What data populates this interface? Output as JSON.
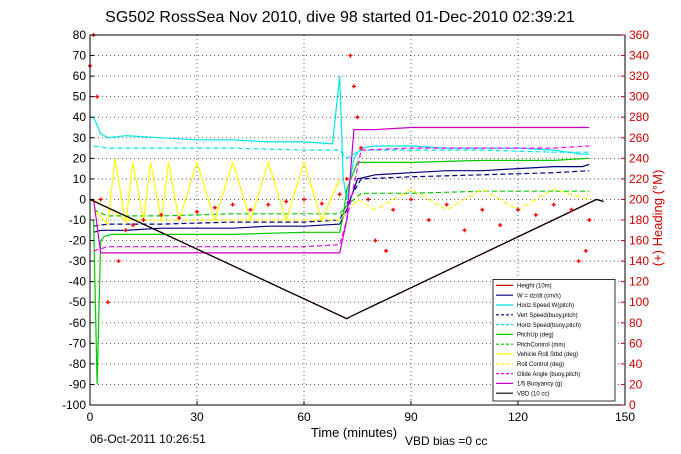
{
  "chart_data": {
    "type": "line",
    "title": "SG502 RossSea Nov 2010, dive 98 started 01-Dec-2010 02:39:21",
    "xlabel": "Time (minutes)",
    "ylabel_right": "(+) Heading (°M)",
    "xlim": [
      0,
      150
    ],
    "ylim": [
      -100,
      80
    ],
    "ylim_right": [
      0,
      360
    ],
    "xticks": [
      0,
      30,
      60,
      90,
      120,
      150
    ],
    "yticks": [
      80,
      70,
      60,
      50,
      40,
      30,
      20,
      10,
      0,
      -10,
      -20,
      -30,
      -40,
      -50,
      -60,
      -70,
      -80,
      -90,
      -100
    ],
    "yticks_right": [
      360,
      340,
      320,
      300,
      280,
      260,
      240,
      220,
      200,
      180,
      160,
      140,
      120,
      100,
      80,
      60,
      40,
      20,
      0
    ],
    "grid": true,
    "legend_position": "bottom-right",
    "series": [
      {
        "name": "Height (10m)",
        "color": "#cc0000",
        "style": "solid",
        "x": [
          0,
          72,
          73,
          142,
          144
        ],
        "y": [
          0,
          -58,
          -57,
          0,
          -1
        ]
      },
      {
        "name": "W = dz/dt (cm/s)",
        "color": "#000080",
        "style": "solid",
        "x": [
          1,
          3,
          10,
          20,
          30,
          40,
          50,
          60,
          70,
          72,
          75,
          80,
          90,
          100,
          110,
          120,
          130,
          138,
          140
        ],
        "y": [
          -16,
          -15,
          -15,
          -14,
          -14,
          -14,
          -13,
          -13,
          -12,
          -5,
          10,
          12,
          13,
          14,
          14,
          15,
          16,
          16,
          17
        ]
      },
      {
        "name": "Horiz Speed W(pitch)",
        "color": "#00e5e5",
        "style": "solid",
        "x": [
          1,
          3,
          5,
          10,
          20,
          30,
          40,
          50,
          60,
          68,
          70,
          71,
          72,
          74,
          76,
          80,
          90,
          100,
          110,
          120,
          130,
          138,
          140
        ],
        "y": [
          40,
          32,
          30,
          31,
          30,
          29,
          29,
          28,
          28,
          27,
          60,
          10,
          0,
          20,
          25,
          26,
          26,
          25,
          25,
          25,
          24,
          22,
          22
        ]
      },
      {
        "name": "Vert Speed(buoy,pitch)",
        "color": "#000080",
        "style": "dashed",
        "x": [
          1,
          5,
          20,
          40,
          60,
          70,
          72,
          76,
          90,
          110,
          130,
          140
        ],
        "y": [
          -13,
          -12,
          -12,
          -11,
          -11,
          -10,
          -2,
          10,
          11,
          12,
          13,
          14
        ]
      },
      {
        "name": "Horiz Speed(buoy,pitch)",
        "color": "#00e5e5",
        "style": "dashed",
        "x": [
          1,
          5,
          20,
          40,
          60,
          70,
          72,
          76,
          90,
          110,
          130,
          140
        ],
        "y": [
          26,
          25,
          25,
          25,
          24,
          24,
          20,
          24,
          24,
          24,
          23,
          23
        ]
      },
      {
        "name": "PitchUp (deg)",
        "color": "#00cc00",
        "style": "solid",
        "x": [
          1,
          2,
          3,
          4,
          6,
          20,
          40,
          60,
          70,
          71,
          72,
          75,
          90,
          110,
          130,
          140
        ],
        "y": [
          -10,
          -90,
          -20,
          -18,
          -17,
          -17,
          -17,
          -16,
          -16,
          -8,
          5,
          18,
          18,
          19,
          19,
          20
        ]
      },
      {
        "name": "PitchControl (mm)",
        "color": "#00cc00",
        "style": "dashed",
        "x": [
          1,
          5,
          20,
          40,
          60,
          70,
          72,
          76,
          90,
          110,
          130,
          140
        ],
        "y": [
          -5,
          -8,
          -8,
          -7,
          -7,
          -7,
          -3,
          3,
          3,
          4,
          4,
          4
        ]
      },
      {
        "name": "Vehicle Roll Stbd (deg)",
        "color": "#ffff00",
        "style": "solid",
        "x": [
          1,
          5,
          7,
          10,
          12,
          15,
          17,
          20,
          22,
          25,
          30,
          35,
          40,
          45,
          50,
          55,
          60,
          65,
          70
        ],
        "y": [
          -5,
          -12,
          20,
          -12,
          18,
          -10,
          18,
          -10,
          18,
          -10,
          18,
          -10,
          18,
          -10,
          18,
          -10,
          18,
          -10,
          10
        ]
      },
      {
        "name": "Roll Control (deg)",
        "color": "#ffff00",
        "style": "dashed",
        "x": [
          1,
          10,
          30,
          50,
          70,
          75,
          80,
          90,
          100,
          110,
          120,
          130,
          140
        ],
        "y": [
          0,
          -10,
          -10,
          -10,
          -10,
          0,
          -5,
          5,
          -5,
          5,
          -5,
          5,
          0
        ]
      },
      {
        "name": "Glide Angle (buoy,pitch)",
        "color": "#ff00ff",
        "style": "dashed",
        "x": [
          1,
          5,
          20,
          40,
          60,
          70,
          72,
          76,
          90,
          110,
          130,
          140
        ],
        "y": [
          -25,
          -23,
          -23,
          -23,
          -23,
          -22,
          -10,
          24,
          25,
          25,
          25,
          26
        ]
      },
      {
        "name": "1/5 Buoyancy (g)",
        "color": "#cc00cc",
        "style": "solid",
        "x": [
          1,
          3,
          10,
          20,
          30,
          40,
          50,
          60,
          70,
          72,
          74,
          80,
          90,
          100,
          110,
          120,
          130,
          138,
          140
        ],
        "y": [
          0,
          -26,
          -26,
          -26,
          -26,
          -26,
          -26,
          -26,
          -26,
          -10,
          34,
          34,
          35,
          35,
          35,
          35,
          35,
          35,
          35
        ]
      },
      {
        "name": "VBD (10 cc)",
        "color": "#000000",
        "style": "solid",
        "x": [
          0,
          72,
          73,
          142,
          144
        ],
        "y": [
          0,
          -58,
          -57,
          0,
          -1
        ]
      },
      {
        "name": "(+) Heading (°M)",
        "color": "#ff0000",
        "style": "dots",
        "axis": "right",
        "x": [
          0,
          1,
          2,
          3,
          5,
          8,
          10,
          12,
          15,
          20,
          25,
          30,
          35,
          40,
          45,
          50,
          55,
          60,
          65,
          70,
          72,
          73,
          74,
          75,
          76,
          78,
          80,
          83,
          85,
          90,
          95,
          100,
          105,
          110,
          115,
          120,
          125,
          130,
          135,
          137,
          139,
          140
        ],
        "y": [
          330,
          360,
          300,
          200,
          100,
          140,
          170,
          175,
          180,
          185,
          182,
          188,
          192,
          195,
          190,
          195,
          198,
          200,
          196,
          205,
          220,
          340,
          310,
          280,
          250,
          200,
          160,
          150,
          190,
          200,
          180,
          195,
          170,
          190,
          175,
          190,
          185,
          195,
          190,
          140,
          150,
          180
        ]
      }
    ]
  },
  "footer": {
    "timestamp": "06-Oct-2011 10:26:51",
    "vbd_bias": "VBD bias =0 cc"
  }
}
